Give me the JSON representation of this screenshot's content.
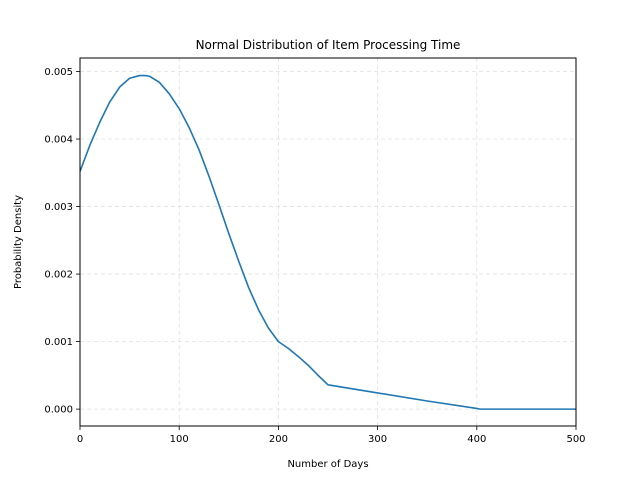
{
  "chart_data": {
    "type": "line",
    "title": "Normal Distribution of Item Processing Time",
    "xlabel": "Number of Days",
    "ylabel": "Probability Density",
    "xlim": [
      0,
      500
    ],
    "ylim": [
      -0.00025,
      0.0052
    ],
    "xticks": [
      0,
      100,
      200,
      300,
      400,
      500
    ],
    "xtick_labels": [
      "0",
      "100",
      "200",
      "300",
      "400",
      "500"
    ],
    "yticks": [
      0,
      0.001,
      0.002,
      0.003,
      0.004,
      0.005
    ],
    "ytick_labels": [
      "0.000",
      "0.001",
      "0.002",
      "0.003",
      "0.004",
      "0.005"
    ],
    "grid": true,
    "series": [
      {
        "color": "#1f77b4",
        "x": [
          0,
          10,
          20,
          30,
          40,
          50,
          60,
          66,
          70,
          80,
          90,
          100,
          110,
          120,
          130,
          140,
          150,
          160,
          170,
          180,
          190,
          200,
          210,
          220,
          230,
          240,
          250,
          300,
          350,
          400,
          403,
          450,
          500
        ],
        "y": [
          0.00352,
          0.00391,
          0.00425,
          0.00455,
          0.00477,
          0.0049,
          0.00494,
          0.00494,
          0.00493,
          0.00484,
          0.00467,
          0.00445,
          0.00417,
          0.00384,
          0.00345,
          0.00303,
          0.0026,
          0.00219,
          0.0018,
          0.00147,
          0.0012,
          0.001,
          0.0009,
          0.00078,
          0.00065,
          0.0005,
          0.00036,
          0.00024,
          0.00012,
          1e-05,
          0.0,
          0.0,
          0.0
        ]
      }
    ]
  }
}
